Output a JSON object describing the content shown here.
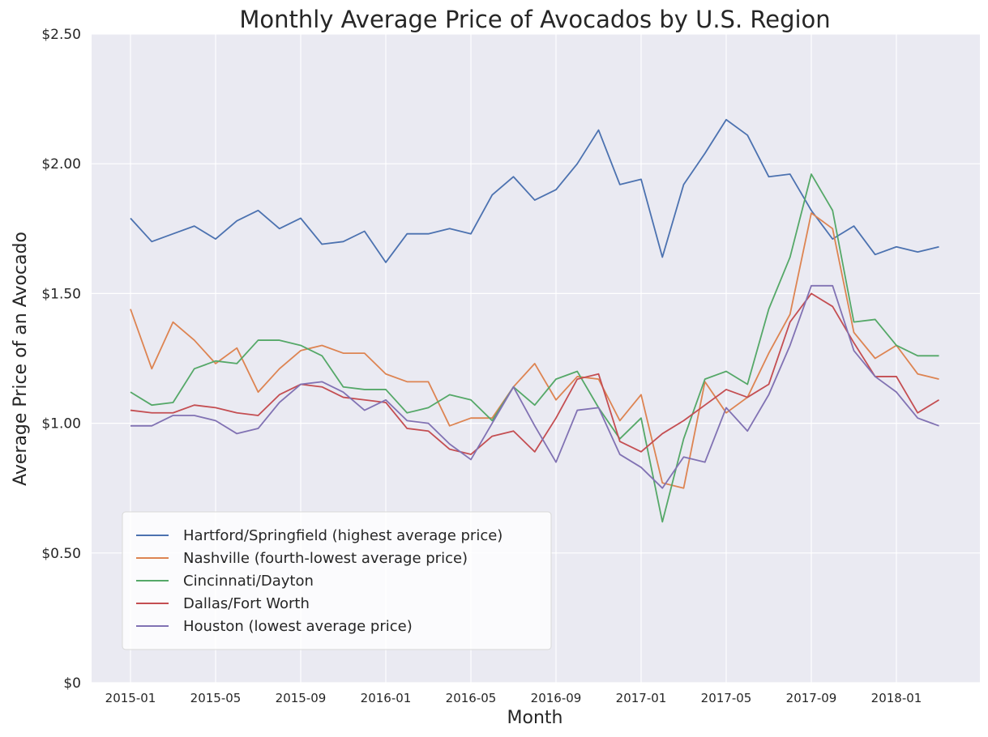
{
  "chart_data": {
    "type": "line",
    "title": "Monthly Average Price of Avocados by U.S. Region",
    "xlabel": "Month",
    "ylabel": "Average Price of an Avocado",
    "ylim": [
      0,
      2.5
    ],
    "yticks": [
      0,
      0.5,
      1.0,
      1.5,
      2.0,
      2.5
    ],
    "ytick_labels": [
      "$0",
      "$0.50",
      "$1.00",
      "$1.50",
      "$2.00",
      "$2.50"
    ],
    "xtick_labels": [
      "2015-01",
      "2015-05",
      "2015-09",
      "2016-01",
      "2016-05",
      "2016-09",
      "2017-01",
      "2017-05",
      "2017-09",
      "2018-01"
    ],
    "grid": true,
    "legend_position": "lower-left",
    "x": [
      "2015-01",
      "2015-02",
      "2015-03",
      "2015-04",
      "2015-05",
      "2015-06",
      "2015-07",
      "2015-08",
      "2015-09",
      "2015-10",
      "2015-11",
      "2015-12",
      "2016-01",
      "2016-02",
      "2016-03",
      "2016-04",
      "2016-05",
      "2016-06",
      "2016-07",
      "2016-08",
      "2016-09",
      "2016-10",
      "2016-11",
      "2016-12",
      "2017-01",
      "2017-02",
      "2017-03",
      "2017-04",
      "2017-05",
      "2017-06",
      "2017-07",
      "2017-08",
      "2017-09",
      "2017-10",
      "2017-11",
      "2017-12",
      "2018-01",
      "2018-02",
      "2018-03"
    ],
    "series": [
      {
        "name": "Hartford/Springfield (highest average price)",
        "color": "#4c72b0",
        "values": [
          1.79,
          1.7,
          1.73,
          1.76,
          1.71,
          1.78,
          1.82,
          1.75,
          1.79,
          1.69,
          1.7,
          1.74,
          1.62,
          1.73,
          1.73,
          1.75,
          1.73,
          1.88,
          1.95,
          1.86,
          1.9,
          2.0,
          2.13,
          1.92,
          1.94,
          1.64,
          1.92,
          2.04,
          2.17,
          2.11,
          1.95,
          1.96,
          1.82,
          1.71,
          1.76,
          1.65,
          1.68,
          1.66,
          1.68
        ]
      },
      {
        "name": "Nashville (fourth-lowest average price)",
        "color": "#dd8452",
        "values": [
          1.44,
          1.21,
          1.39,
          1.32,
          1.23,
          1.29,
          1.12,
          1.21,
          1.28,
          1.3,
          1.27,
          1.27,
          1.19,
          1.16,
          1.16,
          0.99,
          1.02,
          1.02,
          1.14,
          1.23,
          1.09,
          1.18,
          1.17,
          1.01,
          1.11,
          0.77,
          0.75,
          1.16,
          1.04,
          1.1,
          1.27,
          1.42,
          1.81,
          1.75,
          1.35,
          1.25,
          1.3,
          1.19,
          1.17
        ]
      },
      {
        "name": "Cincinnati/Dayton",
        "color": "#55a868",
        "values": [
          1.12,
          1.07,
          1.08,
          1.21,
          1.24,
          1.23,
          1.32,
          1.32,
          1.3,
          1.26,
          1.14,
          1.13,
          1.13,
          1.04,
          1.06,
          1.11,
          1.09,
          1.01,
          1.14,
          1.07,
          1.17,
          1.2,
          1.06,
          0.94,
          1.02,
          0.62,
          0.94,
          1.17,
          1.2,
          1.15,
          1.44,
          1.64,
          1.96,
          1.82,
          1.39,
          1.4,
          1.3,
          1.26,
          1.26
        ]
      },
      {
        "name": "Dallas/Fort Worth",
        "color": "#c44e52",
        "values": [
          1.05,
          1.04,
          1.04,
          1.07,
          1.06,
          1.04,
          1.03,
          1.11,
          1.15,
          1.14,
          1.1,
          1.09,
          1.08,
          0.98,
          0.97,
          0.9,
          0.88,
          0.95,
          0.97,
          0.89,
          1.02,
          1.17,
          1.19,
          0.93,
          0.89,
          0.96,
          1.01,
          1.07,
          1.13,
          1.1,
          1.15,
          1.39,
          1.5,
          1.45,
          1.31,
          1.18,
          1.18,
          1.04,
          1.09
        ]
      },
      {
        "name": "Houston (lowest average price)",
        "color": "#8172b3",
        "values": [
          0.99,
          0.99,
          1.03,
          1.03,
          1.01,
          0.96,
          0.98,
          1.08,
          1.15,
          1.16,
          1.12,
          1.05,
          1.09,
          1.01,
          1.0,
          0.92,
          0.86,
          1.0,
          1.14,
          0.99,
          0.85,
          1.05,
          1.06,
          0.88,
          0.83,
          0.75,
          0.87,
          0.85,
          1.06,
          0.97,
          1.11,
          1.3,
          1.53,
          1.53,
          1.28,
          1.18,
          1.12,
          1.02,
          0.99
        ]
      }
    ]
  }
}
